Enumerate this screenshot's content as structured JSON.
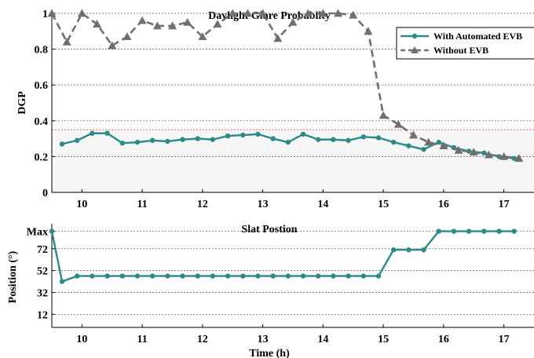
{
  "chart_data": [
    {
      "type": "line",
      "title": "Daylight Glare Probabilty",
      "xlabel": "",
      "ylabel": "DGP",
      "xlim": [
        9.5,
        17.5
      ],
      "ylim": [
        0,
        1
      ],
      "xticks": [
        10,
        11,
        12,
        13,
        14,
        15,
        16,
        17
      ],
      "yticks": [
        0,
        0.2,
        0.4,
        0.6,
        0.8,
        1
      ],
      "ytick_labels": [
        "0",
        "0.2",
        "0.4",
        "0.6",
        "0.8",
        "1"
      ],
      "grid": "horizontal dashed",
      "threshold_band": {
        "from": 0,
        "to": 0.35
      },
      "legend_position": "top-right",
      "series": [
        {
          "name": "With Automated EVB",
          "color": "#2b8a8a",
          "marker": "circle",
          "line": "solid",
          "x": [
            9.67,
            9.92,
            10.17,
            10.42,
            10.67,
            10.92,
            11.17,
            11.42,
            11.67,
            11.92,
            12.17,
            12.42,
            12.67,
            12.92,
            13.17,
            13.42,
            13.67,
            13.92,
            14.17,
            14.42,
            14.67,
            14.92,
            15.17,
            15.42,
            15.67,
            15.92,
            16.17,
            16.42,
            16.67,
            16.92,
            17.17
          ],
          "y": [
            0.27,
            0.29,
            0.33,
            0.33,
            0.275,
            0.28,
            0.29,
            0.285,
            0.295,
            0.3,
            0.295,
            0.315,
            0.32,
            0.325,
            0.3,
            0.28,
            0.325,
            0.295,
            0.295,
            0.29,
            0.31,
            0.305,
            0.28,
            0.26,
            0.24,
            0.28,
            0.25,
            0.23,
            0.22,
            0.2,
            0.19
          ]
        },
        {
          "name": "Without EVB",
          "color": "#707070",
          "marker": "triangle",
          "line": "dashed",
          "x": [
            9.5,
            9.75,
            10.0,
            10.25,
            10.5,
            10.75,
            11.0,
            11.25,
            11.5,
            11.75,
            12.0,
            12.25,
            12.5,
            12.75,
            13.0,
            13.25,
            13.5,
            13.75,
            14.0,
            14.25,
            14.5,
            14.75,
            15.0,
            15.25,
            15.5,
            15.75,
            16.0,
            16.25,
            16.5,
            16.75,
            17.0,
            17.25
          ],
          "y": [
            1.0,
            0.84,
            1.0,
            0.94,
            0.82,
            0.87,
            0.96,
            0.93,
            0.93,
            0.95,
            0.87,
            0.94,
            1.0,
            1.0,
            1.0,
            0.86,
            0.95,
            1.0,
            1.0,
            1.0,
            0.99,
            0.9,
            0.43,
            0.38,
            0.32,
            0.28,
            0.26,
            0.235,
            0.225,
            0.21,
            0.2,
            0.19
          ]
        }
      ]
    },
    {
      "type": "line",
      "title": "Slat Postion",
      "xlabel": "Time (h)",
      "ylabel": "Position (°)",
      "xlim": [
        9.5,
        17.5
      ],
      "ylim": [
        0,
        92
      ],
      "xticks": [
        10,
        11,
        12,
        13,
        14,
        15,
        16,
        17
      ],
      "yticks": [
        12,
        32,
        52,
        72,
        88
      ],
      "ytick_labels": [
        "12",
        "32",
        "52",
        "72",
        "Max"
      ],
      "grid": "horizontal dashed",
      "series": [
        {
          "name": "With Automated EVB",
          "color": "#2b8a8a",
          "marker": "circle",
          "line": "solid",
          "x": [
            9.5,
            9.67,
            9.92,
            10.17,
            10.42,
            10.67,
            10.92,
            11.17,
            11.42,
            11.67,
            11.92,
            12.17,
            12.42,
            12.67,
            12.92,
            13.17,
            13.42,
            13.67,
            13.92,
            14.17,
            14.42,
            14.67,
            14.92,
            15.17,
            15.42,
            15.67,
            15.92,
            16.17,
            16.42,
            16.67,
            16.92,
            17.17
          ],
          "y": [
            88,
            42,
            47,
            47,
            47,
            47,
            47,
            47,
            47,
            47,
            47,
            47,
            47,
            47,
            47,
            47,
            47,
            47,
            47,
            47,
            47,
            47,
            47,
            71,
            71,
            71,
            88,
            88,
            88,
            88,
            88,
            88
          ]
        }
      ]
    }
  ]
}
